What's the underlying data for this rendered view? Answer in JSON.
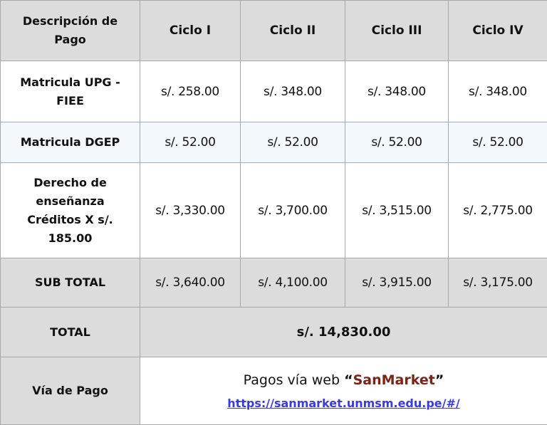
{
  "header": [
    "Descripción de Pago",
    "Ciclo I",
    "Ciclo II",
    "Ciclo III",
    "Ciclo IV"
  ],
  "rows": [
    {
      "label": "Matricula UPG - FIEE",
      "values": [
        "s/. 258.00",
        "s/. 348.00",
        "s/. 348.00",
        "s/. 348.00"
      ]
    },
    {
      "label": "Matricula DGEP",
      "values": [
        "s/. 52.00",
        "s/. 52.00",
        "s/. 52.00",
        "s/. 52.00"
      ]
    },
    {
      "label": "Derecho de enseñanza Créditos X s/. 185.00",
      "values": [
        "s/. 3,330.00",
        "s/. 3,700.00",
        "s/. 3,515.00",
        "s/. 2,775.00"
      ]
    },
    {
      "label": "SUB TOTAL",
      "values": [
        "s/. 3,640.00",
        "s/. 4,100.00",
        "s/. 3,915.00",
        "s/. 3,175.00"
      ]
    }
  ],
  "total": {
    "label": "TOTAL",
    "value": "s/. 14,830.00"
  },
  "payment": {
    "label": "Vía de Pago",
    "text": "Pagos vía web ",
    "open_quote": "“",
    "brand": "SanMarket",
    "close_quote": "”",
    "link": "https://sanmarket.unmsm.edu.pe/#/"
  },
  "colors": {
    "header_bg": "#dcdcdc",
    "alt_row_bg": "#f3f8fd",
    "brand": "#7a2418",
    "link": "#3a3ae0"
  }
}
